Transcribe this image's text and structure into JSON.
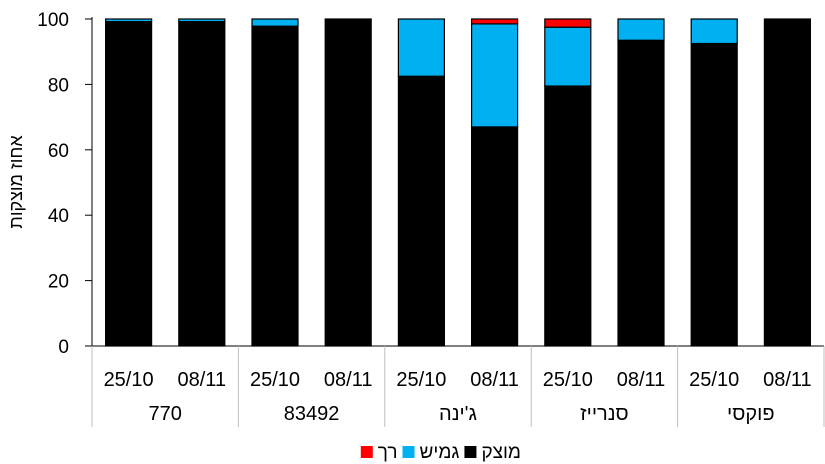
{
  "chart_data": {
    "type": "bar",
    "stacked": true,
    "groups": [
      {
        "name": "770",
        "categories": [
          "25/10",
          "08/11"
        ]
      },
      {
        "name": "83492",
        "categories": [
          "25/10",
          "08/11"
        ]
      },
      {
        "name": "ג'ינה",
        "categories": [
          "25/10",
          "08/11"
        ]
      },
      {
        "name": "סנרייז",
        "categories": [
          "25/10",
          "08/11"
        ]
      },
      {
        "name": "פוקסי",
        "categories": [
          "25/10",
          "08/11"
        ]
      }
    ],
    "series": [
      {
        "name": "מוצק",
        "color": "#000000",
        "values": [
          99.2,
          99.2,
          97.8,
          100,
          82.5,
          67.0,
          79.5,
          93.5,
          92.5,
          100
        ]
      },
      {
        "name": "גמיש",
        "color": "#00B0F0",
        "values": [
          0.8,
          0.8,
          2.2,
          0,
          17.5,
          31.5,
          18.0,
          6.5,
          7.5,
          0
        ]
      },
      {
        "name": "רך",
        "color": "#FF0000",
        "values": [
          0,
          0,
          0,
          0,
          0,
          1.5,
          2.5,
          0,
          0,
          0
        ]
      }
    ],
    "ylabel": "אחוז מוצקות",
    "ylim": [
      0,
      100
    ],
    "yticks": [
      0,
      20,
      40,
      60,
      80,
      100
    ],
    "legend_position": "bottom",
    "grid": false
  }
}
